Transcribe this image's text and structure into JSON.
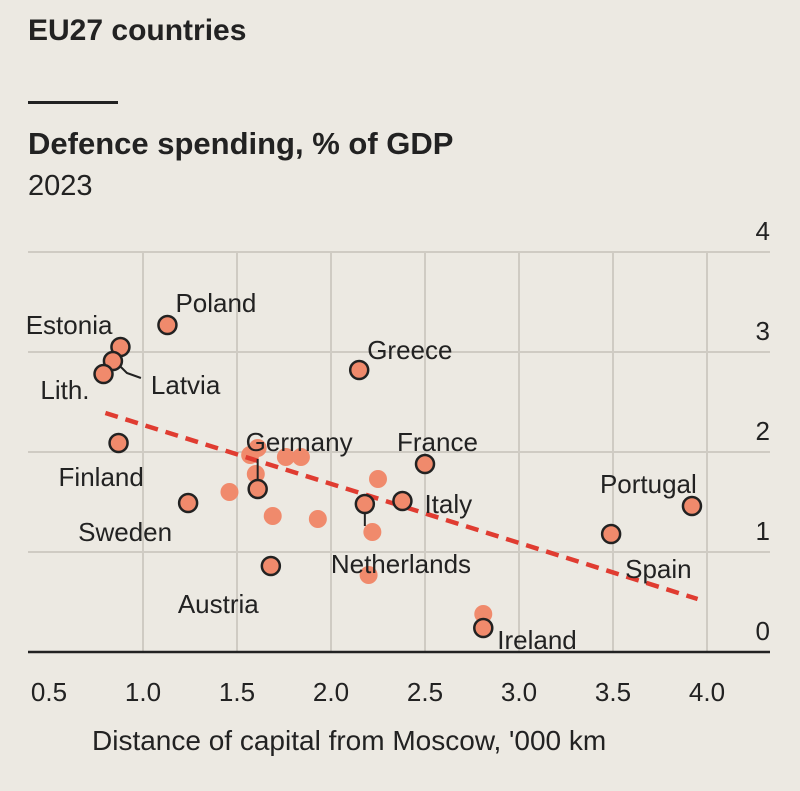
{
  "header": {
    "title": "EU27 countries"
  },
  "chart_data": {
    "type": "scatter",
    "title": "Defence spending, % of GDP",
    "subtitle": "2023",
    "xlabel": "Distance of capital from Moscow, '000 km",
    "ylabel": "",
    "xlim": [
      0.5,
      4.0
    ],
    "ylim": [
      0,
      4
    ],
    "x_ticks": [
      "0.5",
      "1.0",
      "1.5",
      "2.0",
      "2.5",
      "3.0",
      "3.5",
      "4.0"
    ],
    "y_ticks": [
      "0",
      "1",
      "2",
      "3",
      "4"
    ],
    "grid": true,
    "labelled_points": [
      {
        "label": "Poland",
        "x": 1.13,
        "y": 3.27
      },
      {
        "label": "Estonia",
        "x": 0.88,
        "y": 3.05
      },
      {
        "label": "Latvia",
        "x": 0.84,
        "y": 2.91
      },
      {
        "label": "Lith.",
        "x": 0.79,
        "y": 2.78
      },
      {
        "label": "Greece",
        "x": 2.15,
        "y": 2.82
      },
      {
        "label": "Finland",
        "x": 0.87,
        "y": 2.09
      },
      {
        "label": "France",
        "x": 2.5,
        "y": 1.88
      },
      {
        "label": "Germany",
        "x": 1.61,
        "y": 1.63
      },
      {
        "label": "Italy",
        "x": 2.38,
        "y": 1.51
      },
      {
        "label": "Portugal",
        "x": 3.92,
        "y": 1.46
      },
      {
        "label": "Sweden",
        "x": 1.24,
        "y": 1.49
      },
      {
        "label": "Netherlands",
        "x": 2.18,
        "y": 1.48
      },
      {
        "label": "Spain",
        "x": 3.49,
        "y": 1.18
      },
      {
        "label": "Austria",
        "x": 1.68,
        "y": 0.86
      },
      {
        "label": "Ireland",
        "x": 2.81,
        "y": 0.24
      }
    ],
    "unlabelled_points": [
      {
        "x": 1.61,
        "y": 2.04
      },
      {
        "x": 1.57,
        "y": 1.97
      },
      {
        "x": 1.76,
        "y": 1.95
      },
      {
        "x": 1.84,
        "y": 1.95
      },
      {
        "x": 1.6,
        "y": 1.78
      },
      {
        "x": 1.46,
        "y": 1.6
      },
      {
        "x": 2.25,
        "y": 1.73
      },
      {
        "x": 1.69,
        "y": 1.36
      },
      {
        "x": 1.93,
        "y": 1.33
      },
      {
        "x": 2.22,
        "y": 1.2
      },
      {
        "x": 2.2,
        "y": 0.77
      },
      {
        "x": 2.81,
        "y": 0.38
      }
    ],
    "trendline": {
      "x": [
        0.8,
        3.95
      ],
      "y": [
        2.39,
        0.53
      ],
      "color": "#e03c31",
      "style": "dashed"
    },
    "colors": {
      "point_fill": "#f08a6c",
      "point_outline": "#222222",
      "grid": "#cfcbc3",
      "axis": "#222222"
    }
  }
}
